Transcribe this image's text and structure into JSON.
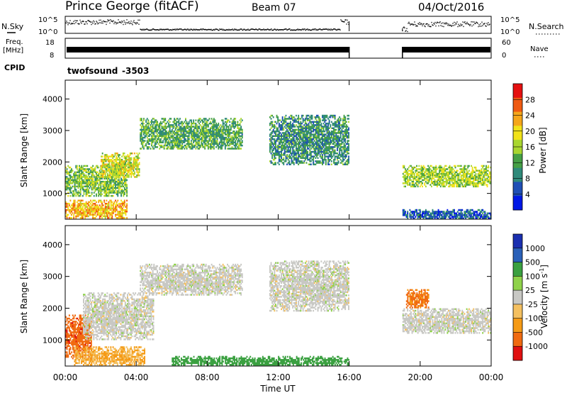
{
  "header": {
    "station": "Prince George (fitACF)",
    "beam": "Beam 07",
    "date": "04/Oct/2016"
  },
  "top_panels": {
    "nsky_label": "N.Sky",
    "nsearch_label": "N.Search",
    "noise_ticks": [
      "10^5",
      "10^0"
    ],
    "freq_label_1": "Freq.",
    "freq_label_2": "[MHz]",
    "freq_ticks": [
      "18",
      "8"
    ],
    "nave_label": "Nave",
    "nave_ticks": [
      "60",
      "0"
    ],
    "cpid_label": "CPID",
    "cpid_name": "twofsound",
    "cpid_value": "-3503"
  },
  "colors": {
    "power_scale": [
      "#0018e6",
      "#1f4fb5",
      "#2f8a7a",
      "#46a046",
      "#a9d630",
      "#f1e21a",
      "#f5a61a",
      "#ef5a12",
      "#e51010"
    ],
    "velocity_scale": [
      "#e01010",
      "#f06a10",
      "#f59a15",
      "#f4c060",
      "#c8c8c4",
      "#8fd24a",
      "#3aa040",
      "#2a60b8",
      "#1a2fb0"
    ]
  },
  "chart_data": [
    {
      "type": "heatmap",
      "title": "",
      "xlabel": "Time UT",
      "ylabel": "Slant Range [km]",
      "xlim": [
        "00:00",
        "00:00"
      ],
      "x_tick_labels": [
        "00:00",
        "04:00",
        "08:00",
        "12:00",
        "16:00",
        "20:00",
        "00:00"
      ],
      "ylim": [
        180,
        4600
      ],
      "y_tick_labels": [
        "1000",
        "2000",
        "3000",
        "4000"
      ],
      "colorbar": {
        "label": "Power [dB]",
        "range": [
          0,
          32
        ],
        "tick_labels": [
          "4",
          "8",
          "12",
          "16",
          "20",
          "24",
          "28"
        ]
      },
      "data_gap_hours": [
        16.0,
        19.0
      ],
      "echo_regions": [
        {
          "t_start": 0.0,
          "t_end": 3.5,
          "range_min": 200,
          "range_max": 800,
          "power_db": 22
        },
        {
          "t_start": 0.0,
          "t_end": 3.5,
          "range_min": 900,
          "range_max": 1900,
          "power_db": 14
        },
        {
          "t_start": 2.0,
          "t_end": 4.2,
          "range_min": 1500,
          "range_max": 2300,
          "power_db": 18
        },
        {
          "t_start": 4.2,
          "t_end": 10.0,
          "range_min": 2400,
          "range_max": 3400,
          "power_db": 12
        },
        {
          "t_start": 11.5,
          "t_end": 16.0,
          "range_min": 1900,
          "range_max": 3500,
          "power_db": 10
        },
        {
          "t_start": 19.0,
          "t_end": 24.0,
          "range_min": 1200,
          "range_max": 1900,
          "power_db": 16
        },
        {
          "t_start": 19.0,
          "t_end": 24.0,
          "range_min": 180,
          "range_max": 500,
          "power_db": 6
        }
      ]
    },
    {
      "type": "heatmap",
      "title": "",
      "xlabel": "Time UT",
      "ylabel": "Slant Range [km]",
      "xlim": [
        "00:00",
        "00:00"
      ],
      "x_tick_labels": [
        "00:00",
        "04:00",
        "08:00",
        "12:00",
        "16:00",
        "20:00",
        "00:00"
      ],
      "ylim": [
        180,
        4600
      ],
      "y_tick_labels": [
        "1000",
        "2000",
        "3000",
        "4000"
      ],
      "colorbar": {
        "label": "Velocity [m s",
        "label_superscript": "-1",
        "label_suffix": "]",
        "tick_labels": [
          "1000",
          "500",
          "100",
          "25",
          "-25",
          "-100",
          "-500",
          "-1000"
        ]
      },
      "data_gap_hours": [
        16.0,
        19.0
      ],
      "echo_regions": [
        {
          "t_start": 0.0,
          "t_end": 1.5,
          "range_min": 400,
          "range_max": 1800,
          "velocity": -800
        },
        {
          "t_start": 0.5,
          "t_end": 4.5,
          "range_min": 200,
          "range_max": 800,
          "velocity": -100
        },
        {
          "t_start": 1.0,
          "t_end": 5.0,
          "range_min": 1000,
          "range_max": 2500,
          "velocity": 0
        },
        {
          "t_start": 4.2,
          "t_end": 10.0,
          "range_min": 2400,
          "range_max": 3400,
          "velocity": 0
        },
        {
          "t_start": 6.0,
          "t_end": 16.0,
          "range_min": 200,
          "range_max": 500,
          "velocity": 150
        },
        {
          "t_start": 11.5,
          "t_end": 16.0,
          "range_min": 1900,
          "range_max": 3500,
          "velocity": 0
        },
        {
          "t_start": 19.0,
          "t_end": 24.0,
          "range_min": 1200,
          "range_max": 2000,
          "velocity": 0
        },
        {
          "t_start": 19.2,
          "t_end": 20.5,
          "range_min": 2000,
          "range_max": 2600,
          "velocity": -600
        }
      ]
    }
  ]
}
